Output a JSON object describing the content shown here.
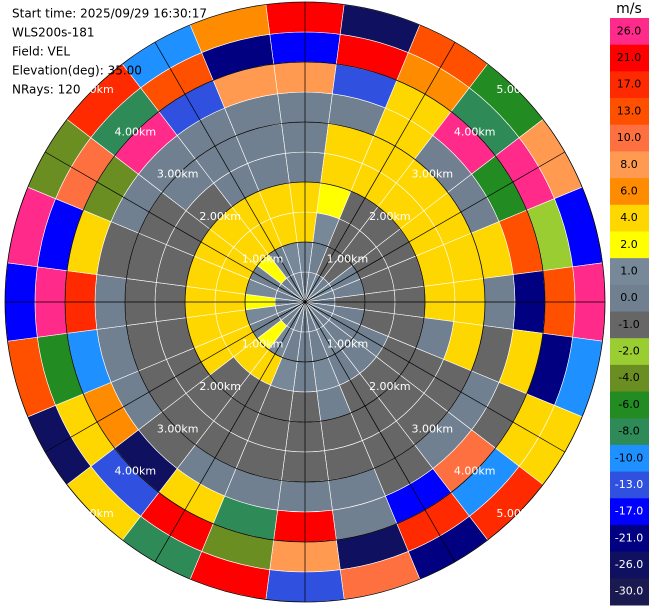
{
  "chart_data": {
    "type": "ppi",
    "header": [
      "Start time: 2025/09/29 16:30:17",
      "WLS200s-181",
      "Field: VEL",
      "Elevation(deg): 35.00",
      "NRays: 120"
    ],
    "range_edges_km": [
      0,
      0.5,
      1,
      1.5,
      2,
      2.5,
      3,
      3.5,
      4,
      4.5,
      5
    ],
    "azimuth_step_deg": 15,
    "values": [
      [
        0,
        0.5,
        -0.5,
        0,
        0.5,
        0,
        -0.5,
        0,
        0.5,
        0,
        0,
        -0.5,
        0,
        0.5,
        0,
        -0.5,
        0,
        0,
        0.5,
        0,
        -0.5,
        0,
        0,
        0.5
      ],
      [
        0.5,
        0,
        -1,
        -1.5,
        -0.5,
        0,
        -1,
        -0.5,
        0,
        0,
        0.5,
        0,
        -0.5,
        0,
        0.5,
        1.5,
        0,
        0.5,
        2.5,
        0.5,
        0,
        2.5,
        0,
        0.5
      ],
      [
        3,
        0.5,
        -1.5,
        -1.5,
        -1.5,
        -1.5,
        -1.5,
        -1.5,
        -0.5,
        0,
        0,
        0.5,
        0,
        0.5,
        3,
        3,
        3,
        3,
        3,
        3,
        3,
        3,
        3,
        3
      ],
      [
        3,
        2.5,
        -1.5,
        -1.5,
        -1.5,
        -1.5,
        -1.5,
        -1.5,
        -1.5,
        -1.5,
        -1.5,
        -0.5,
        -1.5,
        -1.5,
        -1.5,
        -1.5,
        3,
        3,
        3,
        3,
        3,
        3,
        3,
        3
      ],
      [
        0,
        3,
        3,
        3,
        3,
        3,
        3,
        -0.5,
        -1.5,
        -1.5,
        -1.5,
        -1.5,
        -1.5,
        -1.5,
        -1.5,
        -1.5,
        -1.5,
        -1.5,
        -1.5,
        -1.5,
        -1.5,
        -1.5,
        0,
        0
      ],
      [
        0,
        3,
        3,
        3,
        3,
        3,
        3,
        3,
        -1.5,
        -1.5,
        -1.5,
        -1.5,
        -1.5,
        -1.5,
        -1.5,
        -1.5,
        -1.5,
        -1.5,
        -1.5,
        -1.5,
        -1.5,
        0,
        0,
        0
      ],
      [
        0,
        0,
        3,
        0,
        -0.5,
        3,
        0,
        -1.5,
        0,
        0,
        -1.5,
        0,
        0,
        0,
        -0.5,
        -1.5,
        0,
        0,
        0,
        -1.5,
        0,
        0,
        0,
        0
      ],
      [
        8,
        -13,
        3,
        26,
        -6,
        13,
        -21,
        3,
        -1.5,
        10,
        -17,
        0,
        21,
        -8,
        4,
        -26,
        6,
        -10,
        17,
        3,
        -4,
        26,
        -13,
        8
      ],
      [
        -17,
        21,
        6,
        -8,
        26,
        -2,
        13,
        -21,
        4,
        -10,
        17,
        -26,
        8,
        -4,
        21,
        -13,
        3,
        -6,
        26,
        -17,
        10,
        -8,
        13,
        -21
      ],
      [
        21,
        -26,
        13,
        -6,
        8,
        -17,
        26,
        -10,
        3,
        17,
        -21,
        10,
        -13,
        21,
        -8,
        4,
        -26,
        13,
        -17,
        26,
        -4,
        17,
        -10,
        6
      ]
    ],
    "range_rings": [
      {
        "value": 1,
        "label": "1.00km"
      },
      {
        "value": 2,
        "label": "2.00km"
      },
      {
        "value": 3,
        "label": "3.00km"
      },
      {
        "value": 4,
        "label": "4.00km"
      },
      {
        "value": 5,
        "label": "5.00km"
      }
    ],
    "colorbar": {
      "label": "m/s",
      "ticks": [
        {
          "value": 26,
          "label": "26.0"
        },
        {
          "value": 21,
          "label": "21.0"
        },
        {
          "value": 17,
          "label": "17.0"
        },
        {
          "value": 13,
          "label": "13.0"
        },
        {
          "value": 10,
          "label": "10.0"
        },
        {
          "value": 8,
          "label": "8.0"
        },
        {
          "value": 6,
          "label": "6.0"
        },
        {
          "value": 4,
          "label": "4.0"
        },
        {
          "value": 2,
          "label": "2.0"
        },
        {
          "value": 1,
          "label": "1.0"
        },
        {
          "value": 0,
          "label": "0.0"
        },
        {
          "value": -1,
          "label": "-1.0"
        },
        {
          "value": -2,
          "label": "-2.0"
        },
        {
          "value": -4,
          "label": "-4.0"
        },
        {
          "value": -6,
          "label": "-6.0"
        },
        {
          "value": -8,
          "label": "-8.0"
        },
        {
          "value": -10,
          "label": "-10.0"
        },
        {
          "value": -13,
          "label": "-13.0"
        },
        {
          "value": -17,
          "label": "-17.0"
        },
        {
          "value": -21,
          "label": "-21.0"
        },
        {
          "value": -26,
          "label": "-26.0"
        },
        {
          "value": -30,
          "label": "-30.0"
        }
      ],
      "colors": [
        "#ff2a8a",
        "#ff0000",
        "#ff2a00",
        "#ff5000",
        "#ff7040",
        "#ff9a50",
        "#ff8c00",
        "#ffd700",
        "#ffff00",
        "#778899",
        "#708090",
        "#666666",
        "#9acd32",
        "#6b8e23",
        "#228b22",
        "#2e8b57",
        "#1e90ff",
        "#3050e0",
        "#0000ff",
        "#000080",
        "#101060",
        "#1a1a50"
      ]
    }
  }
}
